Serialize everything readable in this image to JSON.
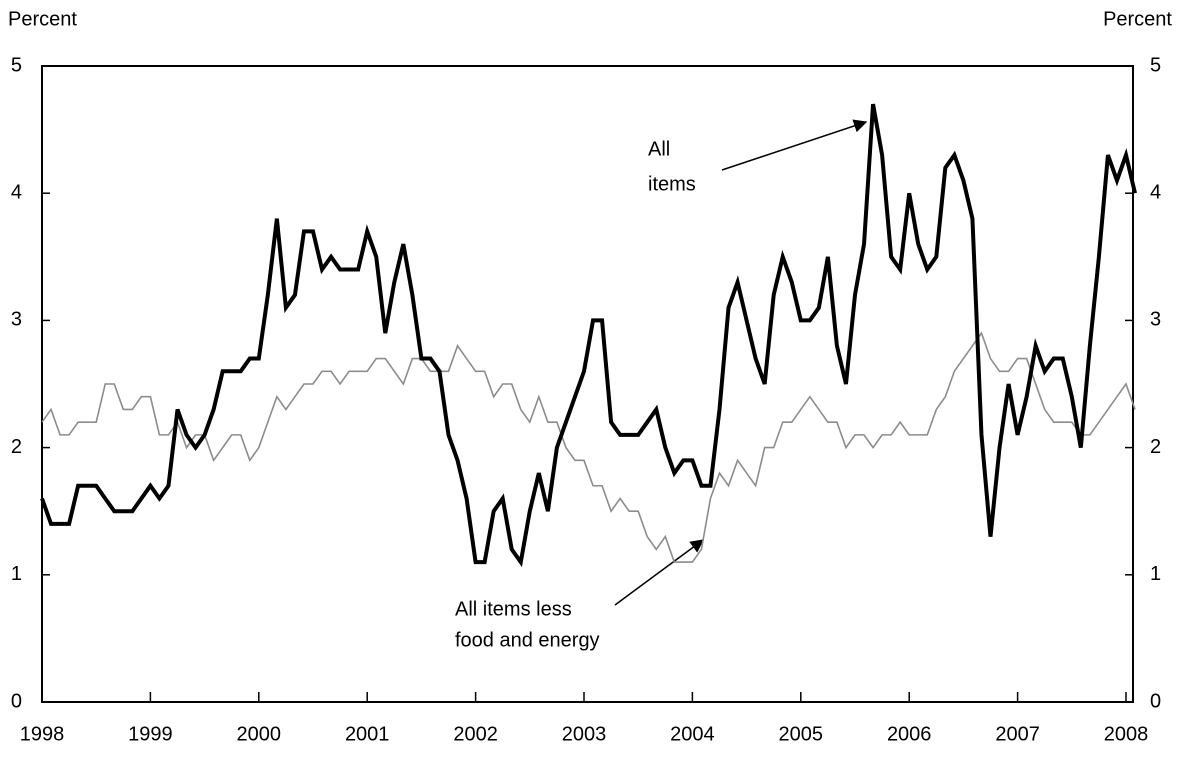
{
  "chart_data": {
    "type": "line",
    "y_label": "Percent",
    "y2_label": "Percent",
    "categories": [
      "1998",
      null,
      null,
      null,
      null,
      null,
      null,
      null,
      null,
      null,
      null,
      null,
      "1999",
      null,
      null,
      null,
      null,
      null,
      null,
      null,
      null,
      null,
      null,
      null,
      "2000",
      null,
      null,
      null,
      null,
      null,
      null,
      null,
      null,
      null,
      null,
      null,
      "2001",
      null,
      null,
      null,
      null,
      null,
      null,
      null,
      null,
      null,
      null,
      null,
      "2002",
      null,
      null,
      null,
      null,
      null,
      null,
      null,
      null,
      null,
      null,
      null,
      "2003",
      null,
      null,
      null,
      null,
      null,
      null,
      null,
      null,
      null,
      null,
      null,
      "2004",
      null,
      null,
      null,
      null,
      null,
      null,
      null,
      null,
      null,
      null,
      null,
      "2005",
      null,
      null,
      null,
      null,
      null,
      null,
      null,
      null,
      null,
      null,
      null,
      "2006",
      null,
      null,
      null,
      null,
      null,
      null,
      null,
      null,
      null,
      null,
      null,
      "2007",
      null,
      null,
      null,
      null,
      null,
      null,
      null,
      null,
      null,
      null,
      null,
      "2008",
      null
    ],
    "series": [
      {
        "name": "All items",
        "color": "#000000",
        "width": 4,
        "values": [
          1.6,
          1.4,
          1.4,
          1.4,
          1.7,
          1.7,
          1.7,
          1.6,
          1.5,
          1.5,
          1.5,
          1.6,
          1.7,
          1.6,
          1.7,
          2.3,
          2.1,
          2.0,
          2.1,
          2.3,
          2.6,
          2.6,
          2.6,
          2.7,
          2.7,
          3.2,
          3.8,
          3.1,
          3.2,
          3.7,
          3.7,
          3.4,
          3.5,
          3.4,
          3.4,
          3.4,
          3.7,
          3.5,
          2.9,
          3.3,
          3.6,
          3.2,
          2.7,
          2.7,
          2.6,
          2.1,
          1.9,
          1.6,
          1.1,
          1.1,
          1.5,
          1.6,
          1.2,
          1.1,
          1.5,
          1.8,
          1.5,
          2.0,
          2.2,
          2.4,
          2.6,
          3.0,
          3.0,
          2.2,
          2.1,
          2.1,
          2.1,
          2.2,
          2.3,
          2.0,
          1.8,
          1.9,
          1.9,
          1.7,
          1.7,
          2.3,
          3.1,
          3.3,
          3.0,
          2.7,
          2.5,
          3.2,
          3.5,
          3.3,
          3.0,
          3.0,
          3.1,
          3.5,
          2.8,
          2.5,
          3.2,
          3.6,
          4.7,
          4.3,
          3.5,
          3.4,
          4.0,
          3.6,
          3.4,
          3.5,
          4.2,
          4.3,
          4.1,
          3.8,
          2.1,
          1.3,
          2.0,
          2.5,
          2.1,
          2.4,
          2.8,
          2.6,
          2.7,
          2.7,
          2.4,
          2.0,
          2.8,
          3.5,
          4.3,
          4.1,
          4.3,
          4.0
        ]
      },
      {
        "name": "All items less food and energy",
        "color": "#8c8c8c",
        "width": 1.6,
        "values": [
          2.2,
          2.3,
          2.1,
          2.1,
          2.2,
          2.2,
          2.2,
          2.5,
          2.5,
          2.3,
          2.3,
          2.4,
          2.4,
          2.1,
          2.1,
          2.2,
          2.0,
          2.1,
          2.1,
          1.9,
          2.0,
          2.1,
          2.1,
          1.9,
          2.0,
          2.2,
          2.4,
          2.3,
          2.4,
          2.5,
          2.5,
          2.6,
          2.6,
          2.5,
          2.6,
          2.6,
          2.6,
          2.7,
          2.7,
          2.6,
          2.5,
          2.7,
          2.7,
          2.6,
          2.6,
          2.6,
          2.8,
          2.7,
          2.6,
          2.6,
          2.4,
          2.5,
          2.5,
          2.3,
          2.2,
          2.4,
          2.2,
          2.2,
          2.0,
          1.9,
          1.9,
          1.7,
          1.7,
          1.5,
          1.6,
          1.5,
          1.5,
          1.3,
          1.2,
          1.3,
          1.1,
          1.1,
          1.1,
          1.2,
          1.6,
          1.8,
          1.7,
          1.9,
          1.8,
          1.7,
          2.0,
          2.0,
          2.2,
          2.2,
          2.3,
          2.4,
          2.3,
          2.2,
          2.2,
          2.0,
          2.1,
          2.1,
          2.0,
          2.1,
          2.1,
          2.2,
          2.1,
          2.1,
          2.1,
          2.3,
          2.4,
          2.6,
          2.7,
          2.8,
          2.9,
          2.7,
          2.6,
          2.6,
          2.7,
          2.7,
          2.5,
          2.3,
          2.2,
          2.2,
          2.2,
          2.1,
          2.1,
          2.2,
          2.3,
          2.4,
          2.5,
          2.3
        ]
      }
    ],
    "annotations": [
      {
        "lines": [
          "All",
          "items"
        ]
      },
      {
        "lines": [
          "All items less",
          "food and energy"
        ]
      }
    ],
    "ylim": [
      0,
      5
    ],
    "yticks": [
      0,
      1,
      2,
      3,
      4,
      5
    ],
    "y2lim": [
      0,
      5
    ],
    "y2ticks": [
      0,
      1,
      2,
      3,
      4,
      5
    ]
  }
}
